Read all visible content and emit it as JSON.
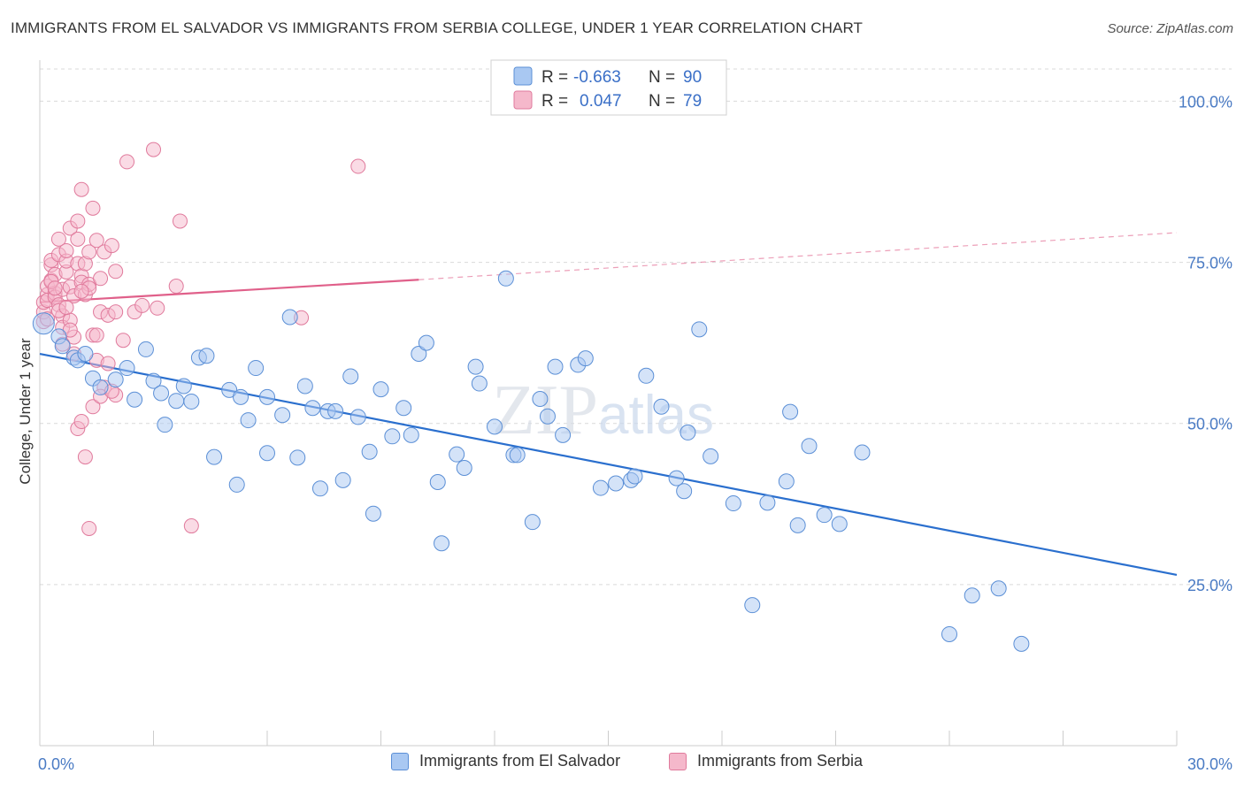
{
  "title": "IMMIGRANTS FROM EL SALVADOR VS IMMIGRANTS FROM SERBIA COLLEGE, UNDER 1 YEAR CORRELATION CHART",
  "source": "Source: ZipAtlas.com",
  "watermark": "ZIPatlas",
  "colors": {
    "blue_fill": "#a9c8f2",
    "blue_stroke": "#5b8fd6",
    "blue_line": "#2a6fce",
    "pink_fill": "#f5b8cb",
    "pink_stroke": "#e07a9c",
    "pink_line": "#e0608a",
    "grid": "#d9d9d9",
    "tick_label": "#4a7bc4"
  },
  "legend_top": [
    {
      "r_label": "R =",
      "r_value": "-0.663",
      "n_label": "N =",
      "n_value": "90"
    },
    {
      "r_label": "R =",
      "r_value": "0.047",
      "n_label": "N =",
      "n_value": "79"
    }
  ],
  "chart_data": {
    "type": "scatter",
    "title": "IMMIGRANTS FROM EL SALVADOR VS IMMIGRANTS FROM SERBIA COLLEGE, UNDER 1 YEAR CORRELATION CHART",
    "xlabel": "",
    "ylabel": "College, Under 1 year",
    "xlim": [
      0,
      30
    ],
    "ylim": [
      0,
      105
    ],
    "x_tick_labels": [
      "0.0%",
      "30.0%"
    ],
    "y_ticks": [
      25,
      50,
      75,
      100
    ],
    "y_tick_labels": [
      "25.0%",
      "50.0%",
      "75.0%",
      "100.0%"
    ],
    "grid": true,
    "legend_position": "top-center",
    "series": [
      {
        "name": "Immigrants from El Salvador",
        "r": -0.663,
        "n": 90,
        "trend": {
          "x0": 0,
          "y0": 60.8,
          "x1": 30,
          "y1": 26.5
        },
        "points": [
          [
            0.1,
            65.5
          ],
          [
            0.5,
            63.5
          ],
          [
            0.6,
            62
          ],
          [
            0.9,
            60.2
          ],
          [
            1.0,
            59.8
          ],
          [
            1.2,
            60.8
          ],
          [
            1.4,
            57.0
          ],
          [
            1.6,
            55.6
          ],
          [
            2.0,
            56.8
          ],
          [
            2.3,
            58.6
          ],
          [
            2.5,
            53.7
          ],
          [
            2.8,
            61.5
          ],
          [
            3.0,
            56.6
          ],
          [
            3.2,
            54.7
          ],
          [
            3.3,
            49.8
          ],
          [
            3.6,
            53.5
          ],
          [
            3.8,
            55.8
          ],
          [
            4.0,
            53.4
          ],
          [
            4.2,
            60.2
          ],
          [
            4.4,
            60.5
          ],
          [
            4.6,
            44.8
          ],
          [
            5.0,
            55.2
          ],
          [
            5.2,
            40.5
          ],
          [
            5.3,
            54.1
          ],
          [
            5.5,
            50.5
          ],
          [
            5.7,
            58.6
          ],
          [
            6.0,
            45.4
          ],
          [
            6.0,
            54.1
          ],
          [
            6.4,
            51.3
          ],
          [
            6.6,
            66.5
          ],
          [
            6.8,
            44.7
          ],
          [
            7.0,
            55.8
          ],
          [
            7.2,
            52.4
          ],
          [
            7.4,
            39.9
          ],
          [
            7.6,
            51.9
          ],
          [
            7.8,
            51.9
          ],
          [
            8.0,
            41.2
          ],
          [
            8.2,
            57.3
          ],
          [
            8.4,
            51.0
          ],
          [
            8.7,
            45.6
          ],
          [
            8.8,
            36.0
          ],
          [
            9.0,
            55.3
          ],
          [
            9.3,
            48.0
          ],
          [
            9.6,
            52.4
          ],
          [
            9.8,
            48.2
          ],
          [
            10.0,
            60.8
          ],
          [
            10.2,
            62.5
          ],
          [
            10.5,
            40.9
          ],
          [
            10.6,
            31.4
          ],
          [
            11.0,
            45.2
          ],
          [
            11.2,
            43.1
          ],
          [
            11.5,
            58.8
          ],
          [
            11.6,
            56.2
          ],
          [
            12.0,
            49.5
          ],
          [
            12.3,
            72.5
          ],
          [
            12.5,
            45.1
          ],
          [
            12.6,
            45.1
          ],
          [
            13.0,
            34.7
          ],
          [
            13.2,
            53.8
          ],
          [
            13.4,
            51.1
          ],
          [
            13.6,
            58.8
          ],
          [
            13.8,
            48.2
          ],
          [
            14.2,
            59.1
          ],
          [
            14.4,
            60.1
          ],
          [
            14.8,
            40.0
          ],
          [
            15.2,
            40.7
          ],
          [
            15.6,
            41.2
          ],
          [
            15.7,
            41.8
          ],
          [
            16.0,
            57.4
          ],
          [
            16.4,
            52.6
          ],
          [
            16.8,
            41.5
          ],
          [
            17.0,
            39.5
          ],
          [
            17.1,
            48.6
          ],
          [
            17.4,
            64.6
          ],
          [
            17.7,
            44.9
          ],
          [
            18.3,
            37.6
          ],
          [
            18.8,
            21.8
          ],
          [
            19.2,
            37.7
          ],
          [
            19.7,
            41.0
          ],
          [
            19.8,
            51.8
          ],
          [
            20.0,
            34.2
          ],
          [
            20.3,
            46.5
          ],
          [
            20.7,
            35.8
          ],
          [
            21.1,
            34.4
          ],
          [
            21.7,
            45.5
          ],
          [
            24.0,
            17.3
          ],
          [
            24.6,
            23.3
          ],
          [
            25.3,
            24.4
          ],
          [
            25.9,
            15.8
          ]
        ]
      },
      {
        "name": "Immigrants from Serbia",
        "r": 0.047,
        "n": 79,
        "trend_solid": {
          "x0": 0,
          "y0": 68.8,
          "x1": 10,
          "y1": 72.3
        },
        "trend_dashed": {
          "x0": 10,
          "y0": 72.3,
          "x1": 30,
          "y1": 79.6
        },
        "points": [
          [
            0.1,
            65.8
          ],
          [
            0.1,
            67.3
          ],
          [
            0.1,
            68.8
          ],
          [
            0.2,
            70.0
          ],
          [
            0.2,
            71.3
          ],
          [
            0.2,
            69.1
          ],
          [
            0.3,
            74.6
          ],
          [
            0.3,
            75.3
          ],
          [
            0.3,
            72.2
          ],
          [
            0.4,
            73.1
          ],
          [
            0.4,
            70.2
          ],
          [
            0.4,
            69.6
          ],
          [
            0.5,
            76.2
          ],
          [
            0.5,
            78.6
          ],
          [
            0.5,
            68.4
          ],
          [
            0.6,
            66.7
          ],
          [
            0.6,
            64.9
          ],
          [
            0.6,
            70.8
          ],
          [
            0.7,
            73.5
          ],
          [
            0.7,
            75.2
          ],
          [
            0.7,
            76.8
          ],
          [
            0.8,
            80.3
          ],
          [
            0.8,
            71.2
          ],
          [
            0.8,
            66.0
          ],
          [
            0.9,
            63.4
          ],
          [
            0.9,
            69.8
          ],
          [
            1.0,
            74.8
          ],
          [
            1.0,
            78.6
          ],
          [
            1.0,
            81.4
          ],
          [
            1.1,
            86.3
          ],
          [
            1.1,
            72.9
          ],
          [
            1.1,
            71.9
          ],
          [
            1.2,
            70.0
          ],
          [
            1.2,
            74.8
          ],
          [
            1.3,
            71.6
          ],
          [
            1.3,
            76.6
          ],
          [
            1.4,
            83.4
          ],
          [
            1.4,
            63.7
          ],
          [
            1.5,
            78.4
          ],
          [
            1.5,
            59.8
          ],
          [
            1.6,
            72.5
          ],
          [
            1.6,
            67.3
          ],
          [
            1.7,
            76.6
          ],
          [
            1.7,
            55.6
          ],
          [
            1.8,
            59.3
          ],
          [
            1.9,
            77.6
          ],
          [
            2.0,
            54.4
          ],
          [
            2.0,
            73.6
          ],
          [
            2.2,
            62.9
          ],
          [
            2.3,
            90.6
          ],
          [
            2.5,
            67.3
          ],
          [
            2.7,
            68.3
          ],
          [
            3.0,
            92.5
          ],
          [
            3.1,
            67.9
          ],
          [
            3.6,
            71.3
          ],
          [
            3.7,
            81.4
          ],
          [
            4.0,
            34.1
          ],
          [
            6.9,
            66.4
          ],
          [
            8.4,
            89.9
          ],
          [
            1.0,
            49.2
          ],
          [
            1.1,
            50.3
          ],
          [
            1.2,
            44.8
          ],
          [
            1.3,
            33.7
          ],
          [
            1.4,
            52.6
          ],
          [
            0.6,
            62.3
          ],
          [
            0.9,
            60.8
          ],
          [
            1.8,
            66.8
          ],
          [
            2.0,
            67.3
          ],
          [
            1.5,
            63.7
          ],
          [
            1.6,
            54.2
          ],
          [
            0.3,
            72.0
          ],
          [
            0.4,
            71.0
          ],
          [
            0.5,
            67.5
          ],
          [
            0.7,
            68.0
          ],
          [
            0.8,
            64.5
          ],
          [
            0.2,
            66.2
          ],
          [
            1.9,
            55.0
          ],
          [
            1.3,
            71.0
          ],
          [
            1.1,
            70.5
          ]
        ]
      }
    ]
  }
}
